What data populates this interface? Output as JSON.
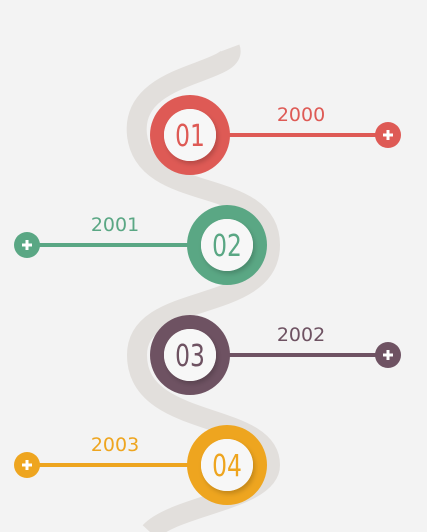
{
  "timeline": {
    "path_color": "#e2dfdc",
    "milestones": [
      {
        "number": "01",
        "year": "2000",
        "color": "#de5a55",
        "side": "right",
        "expand_icon": "plus-icon"
      },
      {
        "number": "02",
        "year": "2001",
        "color": "#5aa784",
        "side": "left",
        "expand_icon": "plus-icon"
      },
      {
        "number": "03",
        "year": "2002",
        "color": "#6e5262",
        "side": "right",
        "expand_icon": "plus-icon"
      },
      {
        "number": "04",
        "year": "2003",
        "color": "#eea51f",
        "side": "left",
        "expand_icon": "plus-icon"
      }
    ]
  }
}
